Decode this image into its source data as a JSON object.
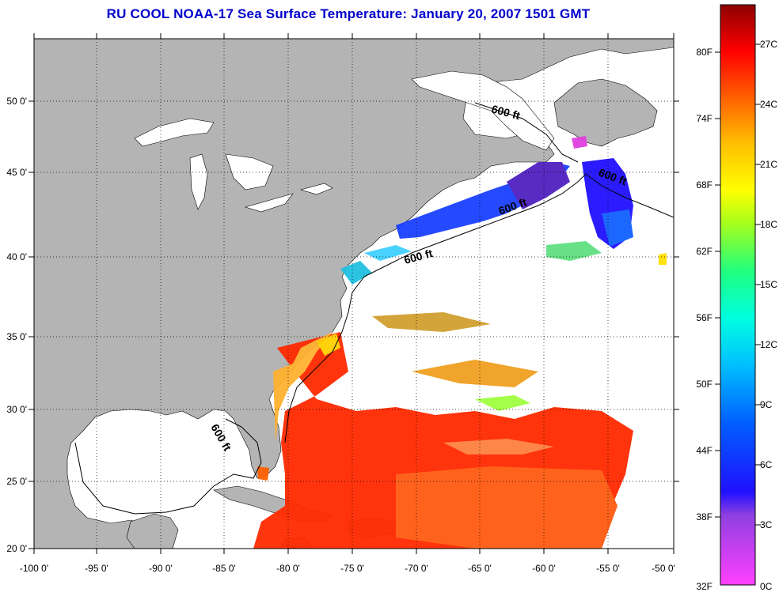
{
  "title": "RU COOL  NOAA-17  Sea Surface Temperature:  January 20, 2007 1501 GMT",
  "map": {
    "lon_labels": [
      "-100 0'",
      "-95 0'",
      "-90 0'",
      "-85 0'",
      "-80 0'",
      "-75 0'",
      "-70 0'",
      "-65 0'",
      "-60 0'",
      "-55 0'",
      "-50 0'"
    ],
    "lat_labels": [
      "50 0'",
      "45 0'",
      "40 0'",
      "35 0'",
      "30 0'",
      "25 0'",
      "20 0'"
    ],
    "contour_label": "600 ft",
    "land_color": "#b4b4b4",
    "ocean_color": "#ffffff"
  },
  "colorbar": {
    "fahrenheit_labels": [
      "80F",
      "74F",
      "68F",
      "62F",
      "56F",
      "50F",
      "44F",
      "38F",
      "32F"
    ],
    "celsius_labels": [
      "27C",
      "24C",
      "21C",
      "18C",
      "15C",
      "12C",
      "9C",
      "6C",
      "3C",
      "0C"
    ]
  }
}
